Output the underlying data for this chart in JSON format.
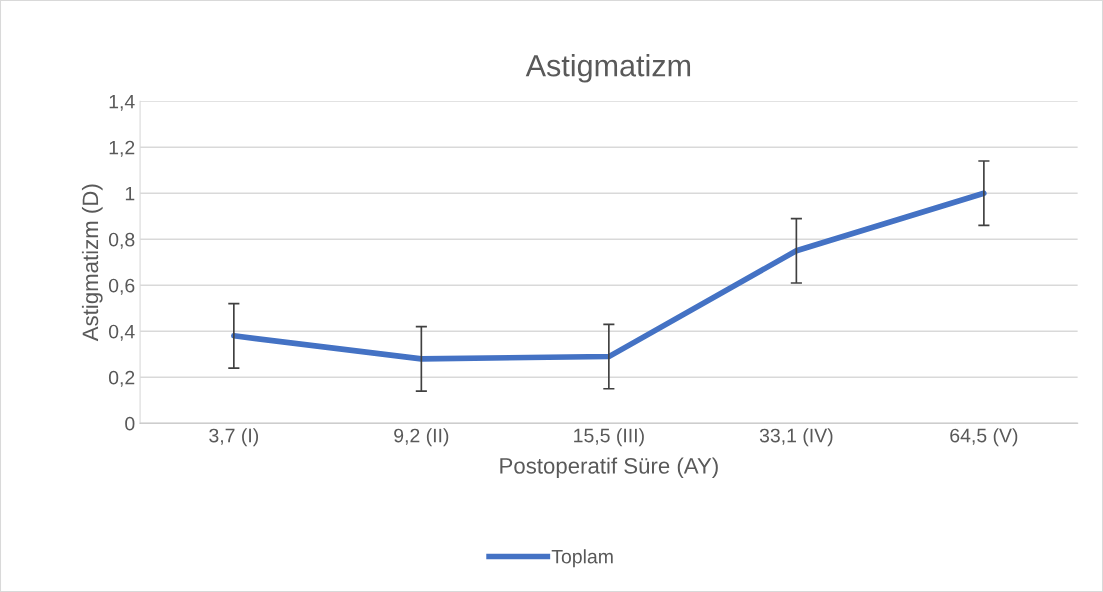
{
  "chart_data": {
    "type": "line",
    "title": "Astigmatizm",
    "xlabel": "Postoperatif Süre (AY)",
    "ylabel": "Astigmatizm (D)",
    "categories": [
      "3,7 (I)",
      "9,2 (II)",
      "15,5 (III)",
      "33,1 (IV)",
      "64,5 (V)"
    ],
    "series": [
      {
        "name": "Toplam",
        "color": "#4472c4",
        "values": [
          0.38,
          0.28,
          0.29,
          0.75,
          1.0
        ],
        "errors": [
          0.14,
          0.14,
          0.14,
          0.14,
          0.14
        ]
      }
    ],
    "ylim": [
      0,
      1.4
    ],
    "yticks": [
      0,
      {
        "value": 0.2,
        "label": "0,2"
      },
      {
        "value": 0.4,
        "label": "0,4"
      },
      {
        "value": 0.6,
        "label": "0,6"
      },
      {
        "value": 0.8,
        "label": "0,8"
      },
      1,
      {
        "value": 1.2,
        "label": "1,2"
      },
      {
        "value": 1.4,
        "label": "1,4"
      }
    ],
    "grid": "y",
    "legend": "bottom",
    "marker": "none",
    "line_style": "solid"
  }
}
